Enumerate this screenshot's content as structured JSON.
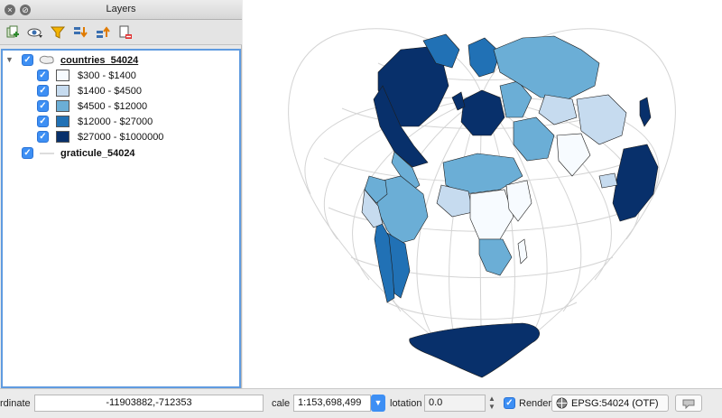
{
  "panel": {
    "title": "Layers",
    "close_glyph": "×",
    "float_glyph": "⊘"
  },
  "toolbar": {
    "buttons": [
      {
        "icon": "add-group-icon"
      },
      {
        "icon": "visibility-eye-icon"
      },
      {
        "icon": "filter-legend-icon"
      },
      {
        "icon": "expand-all-icon"
      },
      {
        "icon": "collapse-all-icon"
      },
      {
        "icon": "remove-layer-icon"
      }
    ]
  },
  "layers": {
    "countries": {
      "name": "countries_54024",
      "checked": true,
      "classes": [
        {
          "label": "$300 - $1400",
          "color": "#f7fbff"
        },
        {
          "label": "$1400 - $4500",
          "color": "#c6dbef"
        },
        {
          "label": "$4500 - $12000",
          "color": "#6baed6"
        },
        {
          "label": "$12000 - $27000",
          "color": "#2171b5"
        },
        {
          "label": "$27000 - $1000000",
          "color": "#08306b"
        }
      ]
    },
    "graticule": {
      "name": "graticule_54024",
      "checked": true
    }
  },
  "status": {
    "coordinate_label": "rdinate",
    "coordinate_value": "-11903882,-712353",
    "scale_label": "cale",
    "scale_value": "1:153,698,499",
    "rotation_label": "lotation",
    "rotation_value": "0.0",
    "render_label": "Render",
    "render_checked": true,
    "crs_label": "EPSG:54024 (OTF)"
  },
  "check_glyph": "✓"
}
